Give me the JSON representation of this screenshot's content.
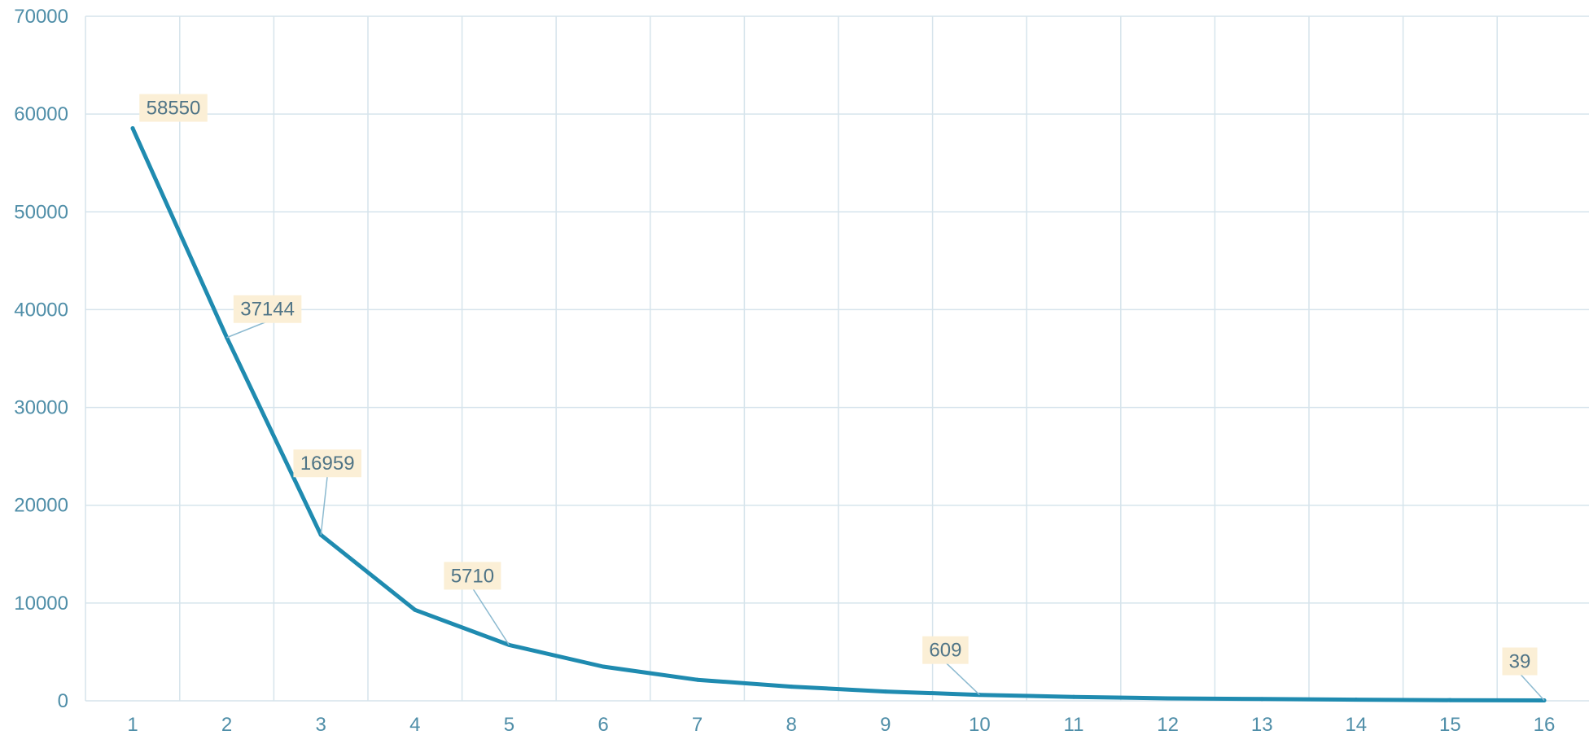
{
  "chart_data": {
    "type": "line",
    "title": "",
    "xlabel": "",
    "ylabel": "",
    "categories": [
      "1",
      "2",
      "3",
      "4",
      "5",
      "6",
      "7",
      "8",
      "9",
      "10",
      "11",
      "12",
      "13",
      "14",
      "15",
      "16"
    ],
    "series": [
      {
        "values": [
          58550,
          37144,
          16959,
          9300,
          5710,
          3500,
          2150,
          1450,
          950,
          609,
          400,
          250,
          180,
          120,
          70,
          39
        ]
      }
    ],
    "ylim": [
      0,
      70000
    ],
    "yticks": [
      "0",
      "10000",
      "20000",
      "30000",
      "40000",
      "50000",
      "60000",
      "70000"
    ],
    "xlim": [
      0.5,
      16.5
    ],
    "grid": true,
    "legend": "none",
    "annotations": [
      {
        "index": 0,
        "text": "58550"
      },
      {
        "index": 1,
        "text": "37144"
      },
      {
        "index": 2,
        "text": "16959"
      },
      {
        "index": 4,
        "text": "5710"
      },
      {
        "index": 9,
        "text": "609"
      },
      {
        "index": 15,
        "text": "39"
      }
    ],
    "colors": {
      "line": "#1f8bb0",
      "grid": "#d6e4ec",
      "tick_text": "#4f8ea8",
      "label_bg": "#fbefd6",
      "label_text": "#4f7486",
      "leader": "#8cbad0"
    }
  }
}
